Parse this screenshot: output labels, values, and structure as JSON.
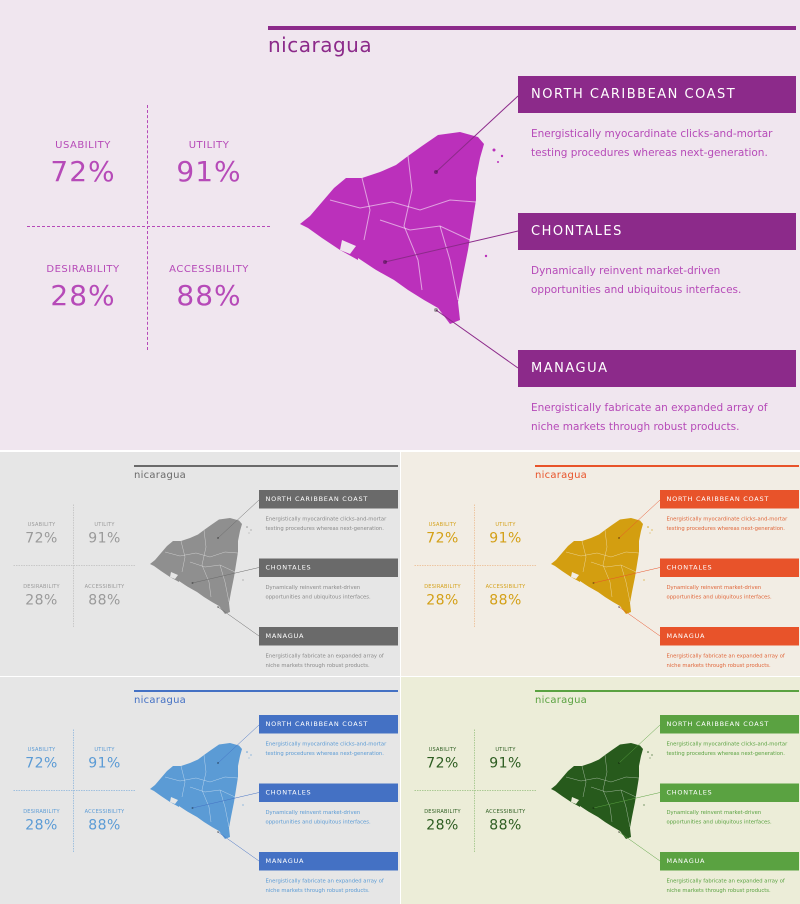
{
  "panels": [
    {
      "id": "purple",
      "bg": "#f0e6ef",
      "accent": "#8c2a8a",
      "map": "#bb30bb",
      "title": "nicaragua",
      "statColor": "#b64ab8",
      "lineColor": "#b64ab8",
      "textColor": "#b64ab8"
    },
    {
      "id": "gray",
      "bg": "#e6e6e6",
      "accent": "#6a6a6a",
      "map": "#8f8f8f",
      "title": "nicaragua",
      "statColor": "#9a9a9a",
      "lineColor": "#aaaaaa",
      "textColor": "#8a8a8a"
    },
    {
      "id": "orange",
      "bg": "#f2ede4",
      "accent": "#e8532a",
      "map": "#d39e10",
      "title": "nicaragua",
      "statColor": "#d4a017",
      "lineColor": "#e8a060",
      "textColor": "#e0663a"
    },
    {
      "id": "blue",
      "bg": "#e6e6e6",
      "accent": "#4471c4",
      "map": "#5b9bd5",
      "title": "nicaragua",
      "statColor": "#5b9bd5",
      "lineColor": "#5b9bd5",
      "textColor": "#5b9bd5"
    },
    {
      "id": "green",
      "bg": "#ecedd8",
      "accent": "#5aa241",
      "map": "#275a1c",
      "title": "nicaragua",
      "statColor": "#2d5d21",
      "lineColor": "#6aa84f",
      "textColor": "#5aa241"
    }
  ],
  "stats": [
    {
      "label": "USABILITY",
      "value": "72%"
    },
    {
      "label": "UTILITY",
      "value": "91%"
    },
    {
      "label": "DESIRABILITY",
      "value": "28%"
    },
    {
      "label": "ACCESSIBILITY",
      "value": "88%"
    }
  ],
  "callouts": [
    {
      "title": "NORTH CARIBBEAN COAST",
      "desc_line1": "Energistically myocardinate clicks-and-mortar",
      "desc_line2": "testing procedures whereas next-generation."
    },
    {
      "title": "CHONTALES",
      "desc_line1": "Dynamically reinvent market-driven",
      "desc_line2": "opportunities and ubiquitous interfaces."
    },
    {
      "title": "MANAGUA",
      "desc_line1": "Energistically fabricate an expanded array of",
      "desc_line2": "niche markets through robust products."
    }
  ]
}
